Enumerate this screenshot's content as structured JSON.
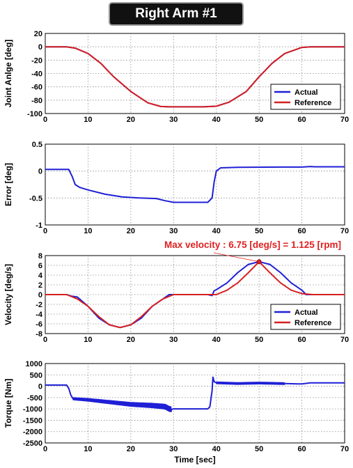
{
  "title": "Right Arm #1",
  "xlabel": "Time [sec]",
  "annotation": "Max velocity : 6.75 [deg/s] = 1.125 [rpm]",
  "colors": {
    "actual": "#1f1fd6",
    "reference": "#d62020",
    "annotation": "#e02020"
  },
  "chart_data": [
    {
      "type": "line",
      "ylabel": "Joint Anlge [deg]",
      "xlim": [
        0,
        70
      ],
      "ylim": [
        -100,
        20
      ],
      "xticks": [
        "0",
        "10",
        "20",
        "30",
        "40",
        "50",
        "60",
        "70"
      ],
      "yticks": [
        "20",
        "0",
        "-20",
        "-40",
        "-60",
        "-80",
        "-100"
      ],
      "grid": true,
      "legend": {
        "position": "bottom-right",
        "entries": [
          "Actual",
          "Reference"
        ]
      },
      "series": [
        {
          "name": "Actual",
          "color": "#1f1fd6",
          "x": [
            0,
            5,
            7,
            10,
            13,
            16,
            20,
            24,
            27,
            29,
            33,
            37,
            40,
            43,
            47,
            50,
            53,
            56,
            60,
            62,
            64,
            70
          ],
          "y": [
            0,
            0,
            -2,
            -10,
            -25,
            -45,
            -67,
            -84,
            -89.5,
            -90,
            -90,
            -90,
            -89,
            -83,
            -67,
            -45,
            -25,
            -10,
            -1,
            0,
            0,
            0
          ]
        },
        {
          "name": "Reference",
          "color": "#d62020",
          "x": [
            0,
            5,
            7,
            10,
            13,
            16,
            20,
            24,
            27,
            29,
            33,
            37,
            40,
            43,
            47,
            50,
            53,
            56,
            60,
            62,
            64,
            70
          ],
          "y": [
            0,
            0,
            -2,
            -10,
            -25,
            -45,
            -67,
            -84,
            -89.5,
            -90,
            -90,
            -90,
            -89,
            -83,
            -67,
            -45,
            -25,
            -10,
            -1,
            0,
            0,
            0
          ]
        }
      ]
    },
    {
      "type": "line",
      "ylabel": "Error [deg]",
      "xlim": [
        0,
        70
      ],
      "ylim": [
        -1,
        0.5
      ],
      "xticks": [
        "0",
        "10",
        "20",
        "30",
        "40",
        "50",
        "60",
        "70"
      ],
      "yticks": [
        "0.5",
        "0",
        "-0.5",
        "-1"
      ],
      "grid": true,
      "series": [
        {
          "name": "Actual",
          "color": "#1f1fd6",
          "x": [
            0,
            5.5,
            6.3,
            7,
            8,
            10,
            14,
            18,
            22,
            26,
            28,
            30,
            34,
            38,
            39,
            39.5,
            40,
            41,
            45,
            55,
            60,
            62,
            63,
            70
          ],
          "y": [
            0.03,
            0.03,
            -0.1,
            -0.25,
            -0.3,
            -0.35,
            -0.43,
            -0.48,
            -0.5,
            -0.51,
            -0.55,
            -0.58,
            -0.58,
            -0.58,
            -0.5,
            -0.2,
            0.0,
            0.06,
            0.07,
            0.075,
            0.075,
            0.085,
            0.08,
            0.08
          ]
        }
      ]
    },
    {
      "type": "line",
      "ylabel": "Velocity [deg/s]",
      "xlim": [
        0,
        70
      ],
      "ylim": [
        -8,
        8
      ],
      "xticks": [
        "0",
        "10",
        "20",
        "30",
        "40",
        "50",
        "60",
        "70"
      ],
      "yticks": [
        "8",
        "6",
        "4",
        "2",
        "0",
        "-2",
        "-4",
        "-6",
        "-8"
      ],
      "grid": true,
      "legend": {
        "position": "bottom-right",
        "entries": [
          "Actual",
          "Reference"
        ]
      },
      "max_point": {
        "x": 50,
        "y": 6.75
      },
      "series": [
        {
          "name": "Actual",
          "color": "#1f1fd6",
          "x": [
            0,
            5,
            6,
            7.5,
            10,
            12.5,
            15,
            17.5,
            20,
            22.5,
            25,
            27.5,
            29,
            30,
            38,
            39,
            39.5,
            40,
            42.5,
            45,
            47.5,
            50,
            52.5,
            55,
            57.5,
            60,
            61,
            62,
            70
          ],
          "y": [
            0,
            0,
            -0.3,
            -0.5,
            -2.4,
            -4.8,
            -6.2,
            -6.75,
            -6.2,
            -4.8,
            -2.4,
            -0.9,
            0,
            0,
            0,
            -0.2,
            0.8,
            1.0,
            2.4,
            4.5,
            6.2,
            6.75,
            6.2,
            4.5,
            2.4,
            0.9,
            0,
            0,
            0
          ]
        },
        {
          "name": "Reference",
          "color": "#d62020",
          "x": [
            0,
            5,
            7.5,
            10,
            12.5,
            15,
            17.5,
            20,
            22.5,
            25,
            27.5,
            30,
            40,
            42.5,
            45,
            47.5,
            50,
            52.5,
            55,
            57.5,
            60,
            62.5,
            70
          ],
          "y": [
            0,
            0,
            -0.9,
            -2.4,
            -4.5,
            -6.2,
            -6.75,
            -6.2,
            -4.5,
            -2.4,
            -0.9,
            0,
            0,
            0.9,
            2.4,
            4.5,
            6.75,
            4.5,
            2.4,
            0.9,
            0.2,
            0,
            0
          ]
        }
      ]
    },
    {
      "type": "line",
      "ylabel": "Torque [Nm]",
      "xlabel": "Time [sec]",
      "xlim": [
        0,
        70
      ],
      "ylim": [
        -2500,
        1000
      ],
      "xticks": [
        "0",
        "10",
        "20",
        "30",
        "40",
        "50",
        "60",
        "70"
      ],
      "yticks": [
        "1000",
        "500",
        "0",
        "-500",
        "-1000",
        "-1500",
        "-2000",
        "-2500"
      ],
      "grid": true,
      "series": [
        {
          "name": "Actual",
          "color": "#1f1fd6",
          "noisy_segments": [
            [
              6.5,
              29.5
            ],
            [
              40,
              56
            ]
          ],
          "x": [
            0,
            5,
            5.5,
            6,
            6.5,
            10,
            15,
            20,
            25,
            28,
            29,
            29.5,
            30,
            38,
            38.5,
            39,
            39.2,
            39.5,
            40,
            45,
            50,
            55,
            60,
            62,
            63,
            70
          ],
          "y": [
            50,
            50,
            -100,
            -400,
            -550,
            -600,
            -700,
            -800,
            -850,
            -900,
            -1000,
            -1020,
            -1000,
            -1000,
            -900,
            -200,
            400,
            200,
            150,
            120,
            140,
            120,
            100,
            150,
            150,
            150
          ]
        }
      ]
    }
  ]
}
